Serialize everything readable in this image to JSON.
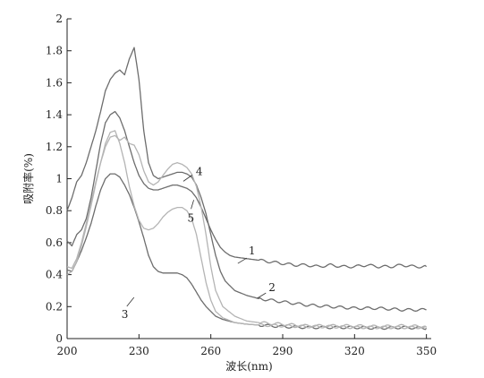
{
  "chart_data": {
    "type": "line",
    "title": "",
    "xlabel": "波长(nm)",
    "ylabel": "吸附率(%)",
    "xlim": [
      200,
      352
    ],
    "ylim": [
      0,
      2
    ],
    "xticks": [
      200,
      230,
      260,
      290,
      320,
      350
    ],
    "yticks": [
      0,
      0.2,
      0.4,
      0.6,
      0.8,
      1,
      1.2,
      1.4,
      1.6,
      1.8,
      2
    ],
    "xtick_labels": [
      "200",
      "230",
      "260",
      "290",
      "320",
      "350"
    ],
    "ytick_labels": [
      "0",
      "0.2",
      "0.4",
      "0.6",
      "0.8",
      "1",
      "1.2",
      "1.4",
      "1.6",
      "1.8",
      "2"
    ],
    "grid": false,
    "series": [
      {
        "name": "1",
        "color": "#6d6d6d",
        "label_at": [
          275,
          0.56
        ],
        "x": [
          200,
          202,
          204,
          206,
          208,
          210,
          212,
          214,
          216,
          218,
          220,
          222,
          224,
          226,
          228,
          230,
          232,
          234,
          236,
          238,
          240,
          242,
          244,
          246,
          248,
          250,
          252,
          254,
          256,
          258,
          260,
          262,
          264,
          266,
          268,
          270,
          275,
          280,
          285,
          290,
          295,
          300,
          305,
          310,
          315,
          320,
          325,
          330,
          335,
          340,
          345,
          350
        ],
        "y": [
          0.61,
          0.58,
          0.65,
          0.68,
          0.75,
          0.88,
          1.05,
          1.22,
          1.35,
          1.4,
          1.42,
          1.38,
          1.3,
          1.2,
          1.1,
          1.02,
          0.97,
          0.94,
          0.93,
          0.93,
          0.94,
          0.95,
          0.96,
          0.96,
          0.95,
          0.94,
          0.92,
          0.88,
          0.82,
          0.75,
          0.68,
          0.62,
          0.57,
          0.54,
          0.52,
          0.51,
          0.5,
          0.49,
          0.48,
          0.47,
          0.46,
          0.46,
          0.45,
          0.46,
          0.45,
          0.45,
          0.46,
          0.45,
          0.45,
          0.46,
          0.45,
          0.45
        ]
      },
      {
        "name": "2",
        "color": "#6d6d6d",
        "label_at": [
          283,
          0.33
        ],
        "x": [
          200,
          202,
          204,
          206,
          208,
          210,
          212,
          214,
          216,
          218,
          220,
          222,
          224,
          226,
          228,
          230,
          232,
          234,
          236,
          238,
          240,
          242,
          244,
          246,
          248,
          250,
          252,
          254,
          256,
          258,
          260,
          262,
          264,
          266,
          270,
          275,
          280,
          285,
          290,
          295,
          300,
          310,
          320,
          330,
          340,
          350
        ],
        "y": [
          0.8,
          0.88,
          0.98,
          1.02,
          1.1,
          1.2,
          1.3,
          1.42,
          1.55,
          1.62,
          1.66,
          1.68,
          1.65,
          1.75,
          1.82,
          1.62,
          1.3,
          1.1,
          1.02,
          1.0,
          1.01,
          1.02,
          1.03,
          1.04,
          1.04,
          1.03,
          1.01,
          0.96,
          0.88,
          0.78,
          0.65,
          0.52,
          0.42,
          0.36,
          0.3,
          0.27,
          0.25,
          0.24,
          0.23,
          0.22,
          0.21,
          0.2,
          0.19,
          0.19,
          0.18,
          0.18
        ]
      },
      {
        "name": "3",
        "color": "#6d6d6d",
        "label_at": [
          241,
          0.23
        ],
        "x": [
          200,
          202,
          204,
          206,
          208,
          210,
          212,
          214,
          216,
          218,
          220,
          222,
          224,
          226,
          228,
          230,
          232,
          234,
          236,
          238,
          240,
          242,
          244,
          246,
          248,
          250,
          252,
          254,
          256,
          258,
          260,
          262,
          265,
          270,
          275,
          280,
          285,
          290,
          300,
          310,
          320,
          330,
          340,
          350
        ],
        "y": [
          0.43,
          0.42,
          0.48,
          0.55,
          0.63,
          0.72,
          0.83,
          0.93,
          1.0,
          1.03,
          1.03,
          1.01,
          0.96,
          0.9,
          0.82,
          0.73,
          0.63,
          0.52,
          0.45,
          0.42,
          0.41,
          0.41,
          0.41,
          0.41,
          0.4,
          0.38,
          0.34,
          0.29,
          0.24,
          0.2,
          0.17,
          0.14,
          0.12,
          0.1,
          0.09,
          0.085,
          0.08,
          0.075,
          0.07,
          0.07,
          0.07,
          0.065,
          0.07,
          0.065
        ]
      },
      {
        "name": "4",
        "color": "#b4b4b4",
        "label_at": [
          253,
          1.04
        ],
        "x": [
          200,
          202,
          204,
          206,
          208,
          210,
          212,
          214,
          216,
          218,
          220,
          222,
          224,
          226,
          228,
          230,
          232,
          234,
          236,
          238,
          240,
          242,
          244,
          246,
          248,
          250,
          252,
          254,
          256,
          258,
          260,
          262,
          265,
          270,
          275,
          280,
          290,
          300,
          310,
          320,
          330,
          340,
          350
        ],
        "y": [
          0.45,
          0.44,
          0.5,
          0.6,
          0.72,
          0.85,
          0.98,
          1.1,
          1.2,
          1.26,
          1.27,
          1.24,
          1.26,
          1.22,
          1.21,
          1.15,
          1.05,
          0.98,
          0.96,
          0.98,
          1.02,
          1.06,
          1.09,
          1.1,
          1.09,
          1.07,
          1.03,
          0.95,
          0.82,
          0.65,
          0.45,
          0.3,
          0.2,
          0.14,
          0.11,
          0.1,
          0.09,
          0.08,
          0.08,
          0.08,
          0.075,
          0.08,
          0.075
        ]
      },
      {
        "name": "5",
        "color": "#b4b4b4",
        "label_at": [
          251,
          0.71
        ],
        "x": [
          200,
          202,
          204,
          206,
          208,
          210,
          212,
          214,
          216,
          218,
          220,
          222,
          224,
          226,
          228,
          230,
          232,
          234,
          236,
          238,
          240,
          242,
          244,
          246,
          248,
          250,
          252,
          254,
          256,
          258,
          260,
          262,
          265,
          270,
          275,
          280,
          290,
          300,
          310,
          320,
          330,
          340,
          350
        ],
        "y": [
          0.4,
          0.42,
          0.48,
          0.58,
          0.7,
          0.83,
          0.97,
          1.1,
          1.22,
          1.29,
          1.3,
          1.22,
          1.1,
          0.95,
          0.83,
          0.74,
          0.69,
          0.68,
          0.69,
          0.72,
          0.76,
          0.79,
          0.81,
          0.82,
          0.82,
          0.8,
          0.75,
          0.65,
          0.5,
          0.35,
          0.24,
          0.17,
          0.13,
          0.1,
          0.09,
          0.085,
          0.08,
          0.075,
          0.075,
          0.07,
          0.07,
          0.07,
          0.07
        ]
      }
    ]
  }
}
